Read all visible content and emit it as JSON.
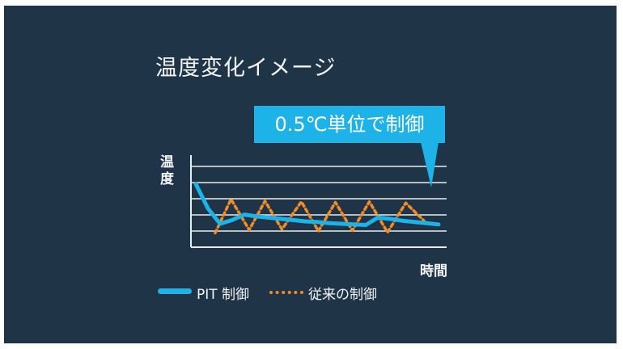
{
  "chart_data": {
    "type": "line",
    "title": "温度変化イメージ",
    "ylabel": "温度",
    "xlabel": "時間",
    "annotation": "0.5℃単位で制御",
    "grid": true,
    "legend_position": "bottom",
    "ylim": [
      0,
      10
    ],
    "series": [
      {
        "name": "PIT 制御",
        "color": "#1db2e8",
        "x": [
          0,
          1,
          2,
          3,
          4,
          5,
          6,
          7,
          8,
          9,
          10,
          11,
          12,
          13,
          14,
          15,
          16,
          17,
          18,
          19,
          20
        ],
        "values": [
          9.0,
          5.0,
          2.5,
          3.1,
          4.0,
          3.7,
          3.5,
          3.3,
          3.1,
          2.9,
          2.8,
          2.6,
          2.5,
          2.4,
          2.3,
          3.5,
          3.3,
          3.0,
          2.8,
          2.6,
          2.4
        ]
      },
      {
        "name": "従来の制御",
        "color": "#f28c28",
        "x": [
          1.6,
          2.9,
          4.4,
          5.7,
          7.1,
          8.7,
          10.1,
          11.5,
          12.9,
          14.3,
          15.8,
          17.3,
          18.8
        ],
        "values": [
          1.0,
          6.5,
          1.5,
          6.2,
          1.6,
          6.1,
          1.3,
          6.0,
          1.4,
          6.1,
          1.1,
          5.9,
          3.0
        ]
      }
    ]
  },
  "legend": {
    "pit": "PIT 制御",
    "conventional": "従来の制御"
  }
}
